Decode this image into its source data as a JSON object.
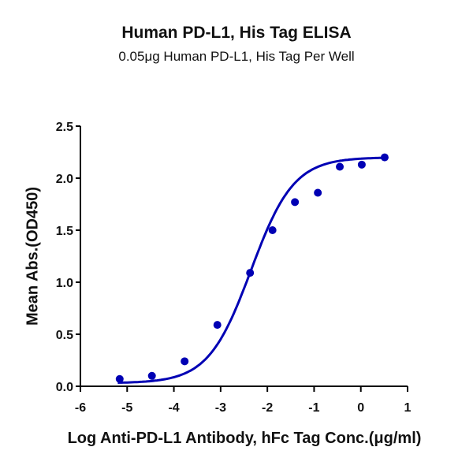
{
  "chart": {
    "title": "Human PD-L1, His Tag ELISA",
    "subtitle": "0.05μg Human PD-L1, His Tag Per Well",
    "xlabel": "Log Anti-PD-L1 Antibody, hFc Tag Conc.(μg/ml)",
    "ylabel": "Mean Abs.(OD450)",
    "series_color": "#0000b4"
  },
  "chart_data": {
    "type": "scatter",
    "title": "Human PD-L1, His Tag ELISA",
    "subtitle": "0.05μg Human PD-L1, His Tag Per Well",
    "xlabel": "Log Anti-PD-L1 Antibody, hFc Tag Conc.(μg/ml)",
    "ylabel": "Mean Abs.(OD450)",
    "xlim": [
      -6,
      1
    ],
    "ylim": [
      0,
      2.5
    ],
    "xticks": [
      "-6",
      "-5",
      "-4",
      "-3",
      "-2",
      "-1",
      "0",
      "1"
    ],
    "yticks": [
      "0.0",
      "0.5",
      "1.0",
      "1.5",
      "2.0",
      "2.5"
    ],
    "grid": false,
    "legend": "none",
    "series": [
      {
        "name": "Mean Abs.",
        "x": [
          -5.16,
          -4.47,
          -3.77,
          -3.07,
          -2.37,
          -1.89,
          -1.41,
          -0.92,
          -0.45,
          0.02,
          0.51
        ],
        "y": [
          0.07,
          0.1,
          0.24,
          0.59,
          1.09,
          1.5,
          1.77,
          1.86,
          2.11,
          2.13,
          2.2
        ],
        "fit": "4-parameter logistic curve"
      }
    ]
  }
}
